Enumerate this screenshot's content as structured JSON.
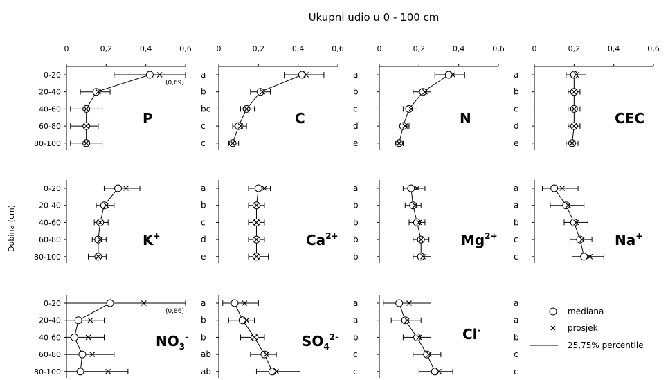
{
  "chart_data": {
    "title": "Ukupni udio u 0 - 100 cm",
    "ylabel": "Dubina (cm)",
    "depth_labels": [
      "0-20",
      "20-40",
      "40-60",
      "60-80",
      "80-100"
    ],
    "x_ticks": [
      "0",
      "0,2",
      "0,4",
      "0,6"
    ],
    "xlim": [
      0,
      0.6
    ],
    "legend": {
      "median": "mediana",
      "mean": "prosjek",
      "range": "25,75% percentile"
    },
    "panels": [
      {
        "id": "P",
        "type": "line",
        "name": "P",
        "sup": "",
        "median": [
          0.42,
          0.15,
          0.1,
          0.1,
          0.1
        ],
        "mean": [
          0.47,
          0.16,
          0.1,
          0.1,
          0.1
        ],
        "p25": [
          0.24,
          0.07,
          0.02,
          0.02,
          0.02
        ],
        "p75": [
          0.69,
          0.22,
          0.18,
          0.16,
          0.18
        ],
        "letters": [
          "a",
          "b",
          "bc",
          "c",
          "c"
        ],
        "overflow_note": "(0,69)"
      },
      {
        "id": "C",
        "type": "line",
        "name": "C",
        "sup": "",
        "median": [
          0.42,
          0.21,
          0.14,
          0.1,
          0.07
        ],
        "mean": [
          0.44,
          0.22,
          0.14,
          0.11,
          0.07
        ],
        "p25": [
          0.33,
          0.16,
          0.11,
          0.07,
          0.05
        ],
        "p75": [
          0.53,
          0.26,
          0.18,
          0.14,
          0.1
        ],
        "letters": [
          "a",
          "b",
          "c",
          "d",
          "e"
        ]
      },
      {
        "id": "N",
        "type": "line",
        "name": "N",
        "sup": "",
        "median": [
          0.35,
          0.22,
          0.15,
          0.12,
          0.1
        ],
        "mean": [
          0.37,
          0.23,
          0.16,
          0.13,
          0.1
        ],
        "p25": [
          0.28,
          0.17,
          0.12,
          0.1,
          0.08
        ],
        "p75": [
          0.43,
          0.26,
          0.19,
          0.15,
          0.12
        ],
        "letters": [
          "a",
          "b",
          "c",
          "d",
          "e"
        ]
      },
      {
        "id": "CEC",
        "type": "line",
        "name": "CEC",
        "sup": "",
        "median": [
          0.2,
          0.2,
          0.2,
          0.2,
          0.19
        ],
        "mean": [
          0.21,
          0.2,
          0.2,
          0.2,
          0.19
        ],
        "p25": [
          0.16,
          0.17,
          0.17,
          0.17,
          0.16
        ],
        "p75": [
          0.26,
          0.23,
          0.23,
          0.23,
          0.22
        ],
        "letters": [
          "a",
          "a",
          "b",
          "c",
          "d"
        ]
      },
      {
        "id": "K",
        "type": "line",
        "name": "K",
        "sup": "+",
        "median": [
          0.26,
          0.19,
          0.17,
          0.16,
          0.16
        ],
        "mean": [
          0.3,
          0.2,
          0.17,
          0.17,
          0.16
        ],
        "p25": [
          0.19,
          0.15,
          0.14,
          0.13,
          0.11
        ],
        "p75": [
          0.37,
          0.24,
          0.21,
          0.2,
          0.2
        ],
        "letters": [
          "a",
          "b",
          "c",
          "d",
          "e"
        ]
      },
      {
        "id": "Ca",
        "type": "line",
        "name": "Ca",
        "sup": "2+",
        "median": [
          0.2,
          0.19,
          0.19,
          0.19,
          0.19
        ],
        "mean": [
          0.23,
          0.19,
          0.19,
          0.19,
          0.19
        ],
        "p25": [
          0.15,
          0.15,
          0.15,
          0.15,
          0.15
        ],
        "p75": [
          0.26,
          0.23,
          0.23,
          0.23,
          0.25
        ],
        "letters": [
          "a",
          "b",
          "b",
          "b",
          "b"
        ]
      },
      {
        "id": "Mg",
        "type": "line",
        "name": "Mg",
        "sup": "2+",
        "median": [
          0.16,
          0.17,
          0.19,
          0.21,
          0.21
        ],
        "mean": [
          0.19,
          0.18,
          0.2,
          0.21,
          0.22
        ],
        "p25": [
          0.12,
          0.13,
          0.15,
          0.17,
          0.17
        ],
        "p75": [
          0.23,
          0.21,
          0.23,
          0.25,
          0.26
        ],
        "letters": [
          "a",
          "a",
          "b",
          "c",
          "c"
        ]
      },
      {
        "id": "Na",
        "type": "line",
        "name": "Na",
        "sup": "+",
        "median": [
          0.1,
          0.16,
          0.2,
          0.23,
          0.25
        ],
        "mean": [
          0.14,
          0.17,
          0.21,
          0.24,
          0.28
        ],
        "p25": [
          0.04,
          0.08,
          0.15,
          0.18,
          0.19
        ],
        "p75": [
          0.22,
          0.25,
          0.27,
          0.29,
          0.35
        ],
        "letters": [
          "a",
          "b",
          "c",
          "d",
          "e"
        ]
      },
      {
        "id": "NO3",
        "type": "line",
        "name": "NO",
        "sub": "3",
        "sup": "-",
        "median": [
          0.22,
          0.06,
          0.04,
          0.08,
          0.07
        ],
        "mean": [
          0.39,
          0.12,
          0.11,
          0.13,
          0.21
        ],
        "p25": [
          0.0,
          0.0,
          0.0,
          0.0,
          0.0
        ],
        "p75": [
          0.86,
          0.19,
          0.19,
          0.24,
          0.31
        ],
        "letters": [
          "a",
          "b",
          "b",
          "ab",
          "ab"
        ],
        "overflow_note": "(0,86)"
      },
      {
        "id": "SO4",
        "type": "line",
        "name": "SO",
        "sub": "4",
        "sup": "2-",
        "median": [
          0.08,
          0.12,
          0.18,
          0.23,
          0.27
        ],
        "mean": [
          0.13,
          0.14,
          0.18,
          0.24,
          0.29
        ],
        "p25": [
          0.02,
          0.05,
          0.11,
          0.16,
          0.19
        ],
        "p75": [
          0.2,
          0.18,
          0.23,
          0.29,
          0.41
        ],
        "letters": [
          "a",
          "a",
          "b",
          "c",
          "c"
        ]
      },
      {
        "id": "Cl",
        "type": "line",
        "name": "Cl",
        "sup": "-",
        "median": [
          0.1,
          0.13,
          0.19,
          0.24,
          0.28
        ],
        "mean": [
          0.15,
          0.14,
          0.2,
          0.25,
          0.3
        ],
        "p25": [
          0.02,
          0.06,
          0.12,
          0.17,
          0.2
        ],
        "p75": [
          0.26,
          0.21,
          0.26,
          0.31,
          0.37
        ],
        "letters": [
          "a",
          "a",
          "b",
          "c",
          "c"
        ]
      }
    ]
  }
}
